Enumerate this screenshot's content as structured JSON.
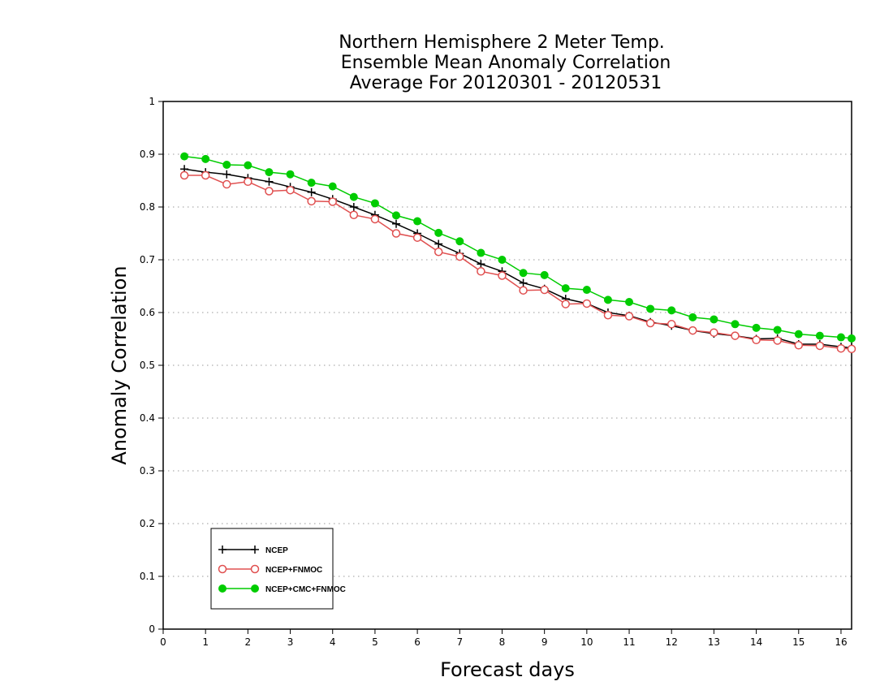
{
  "chart_data": {
    "type": "line",
    "title": [
      "Northern Hemisphere 2 Meter Temp.",
      "Ensemble Mean Anomaly Correlation",
      "Average For 20120301 - 20120531"
    ],
    "xlabel": "Forecast days",
    "ylabel": "Anomaly Correlation",
    "xlim": [
      0,
      16.25
    ],
    "ylim": [
      0,
      1
    ],
    "xticks": [
      "0",
      "1",
      "2",
      "3",
      "4",
      "5",
      "6",
      "7",
      "8",
      "9",
      "10",
      "11",
      "12",
      "13",
      "14",
      "15",
      "16"
    ],
    "yticks": [
      "0",
      "0.1",
      "0.2",
      "0.3",
      "0.4",
      "0.5",
      "0.6",
      "0.7",
      "0.8",
      "0.9",
      "1"
    ],
    "grid": true,
    "legend_position": "bottom-left",
    "x": [
      0.5,
      1,
      1.5,
      2,
      2.5,
      3,
      3.5,
      4,
      4.5,
      5,
      5.5,
      6,
      6.5,
      7,
      7.5,
      8,
      8.5,
      9,
      9.5,
      10,
      10.5,
      11,
      11.5,
      12,
      12.5,
      13,
      13.5,
      14,
      14.5,
      15,
      15.5,
      16,
      16.25
    ],
    "series": [
      {
        "name": "NCEP",
        "color": "#000000",
        "marker": "plus",
        "values": [
          0.872,
          0.866,
          0.862,
          0.855,
          0.848,
          0.838,
          0.828,
          0.815,
          0.8,
          0.785,
          0.768,
          0.75,
          0.73,
          0.712,
          0.692,
          0.678,
          0.656,
          0.645,
          0.626,
          0.617,
          0.6,
          0.594,
          0.582,
          0.575,
          0.566,
          0.56,
          0.556,
          0.55,
          0.551,
          0.54,
          0.54,
          0.535,
          0.533
        ]
      },
      {
        "name": "NCEP+FNMOC",
        "color": "#e05050",
        "marker": "open-circle",
        "values": [
          0.86,
          0.86,
          0.843,
          0.848,
          0.83,
          0.832,
          0.811,
          0.81,
          0.785,
          0.777,
          0.75,
          0.742,
          0.715,
          0.706,
          0.678,
          0.67,
          0.642,
          0.643,
          0.616,
          0.617,
          0.595,
          0.593,
          0.58,
          0.578,
          0.566,
          0.562,
          0.556,
          0.548,
          0.547,
          0.538,
          0.537,
          0.532,
          0.531
        ]
      },
      {
        "name": "NCEP+CMC+FNMOC",
        "color": "#00cc00",
        "marker": "filled-circle",
        "values": [
          0.896,
          0.891,
          0.88,
          0.879,
          0.866,
          0.862,
          0.846,
          0.839,
          0.819,
          0.807,
          0.784,
          0.773,
          0.751,
          0.735,
          0.713,
          0.7,
          0.675,
          0.671,
          0.646,
          0.643,
          0.624,
          0.62,
          0.607,
          0.604,
          0.591,
          0.587,
          0.578,
          0.571,
          0.567,
          0.559,
          0.556,
          0.553,
          0.551
        ]
      }
    ]
  }
}
